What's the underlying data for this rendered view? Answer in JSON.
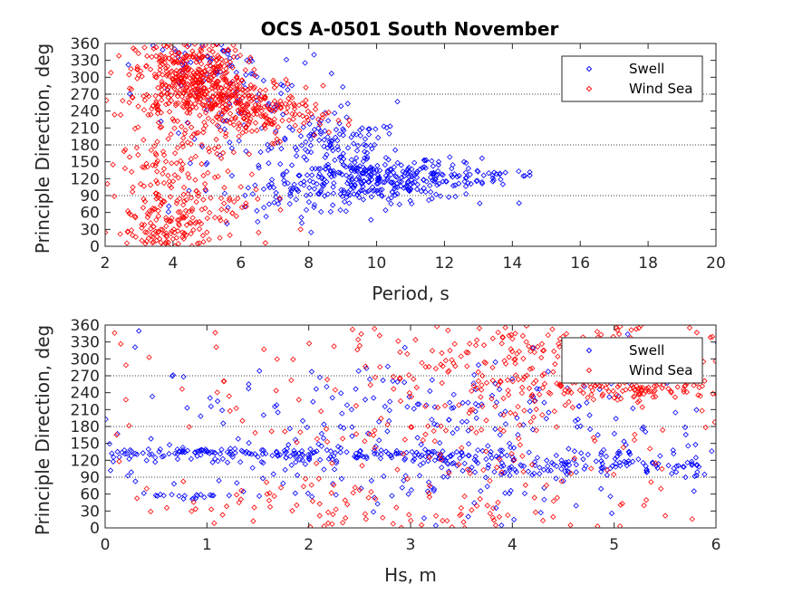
{
  "title": "OCS A-0501 South November",
  "series_colors": {
    "Swell": "#0000ff",
    "Wind Sea": "#ff0000"
  },
  "chart_data": [
    {
      "type": "scatter",
      "title": "OCS A-0501 South November",
      "xlabel": "Period, s",
      "ylabel": "Principle Direction, deg",
      "xlim": [
        2,
        20
      ],
      "ylim": [
        0,
        360
      ],
      "xticks": [
        "2",
        "4",
        "6",
        "8",
        "10",
        "12",
        "14",
        "16",
        "18",
        "20"
      ],
      "yticks": [
        "0",
        "30",
        "60",
        "90",
        "120",
        "150",
        "180",
        "210",
        "240",
        "270",
        "300",
        "330",
        "360"
      ],
      "reference_lines_y": [
        90,
        180,
        270
      ],
      "legend": [
        "Swell",
        "Wind Sea"
      ],
      "legend_position": "top-right",
      "marker": "diamond-open",
      "series": [
        {
          "name": "Swell",
          "color": "#0000ff",
          "clusters": [
            {
              "x_center": 9.5,
              "x_spread": 1.3,
              "y_center": 120,
              "y_spread": 22,
              "count": 260
            },
            {
              "x_center": 11.5,
              "x_spread": 1.2,
              "y_center": 115,
              "y_spread": 15,
              "count": 90
            },
            {
              "x_center": 13.5,
              "x_spread": 0.9,
              "y_center": 130,
              "y_spread": 8,
              "count": 20
            },
            {
              "x_center": 8.8,
              "x_spread": 1.0,
              "y_center": 185,
              "y_spread": 18,
              "count": 80
            },
            {
              "x_center": 7.0,
              "x_spread": 1.5,
              "y_center": 230,
              "y_spread": 40,
              "count": 60
            },
            {
              "x_center": 5.0,
              "x_spread": 1.0,
              "y_center": 320,
              "y_spread": 25,
              "count": 60
            },
            {
              "x_center": 7.0,
              "x_spread": 1.5,
              "y_center": 70,
              "y_spread": 25,
              "count": 40
            }
          ]
        },
        {
          "name": "Wind Sea",
          "color": "#ff0000",
          "clusters": [
            {
              "x_center": 4.5,
              "x_spread": 0.8,
              "y_center": 300,
              "y_spread": 35,
              "count": 350
            },
            {
              "x_center": 5.8,
              "x_spread": 1.0,
              "y_center": 255,
              "y_spread": 25,
              "count": 200
            },
            {
              "x_center": 7.0,
              "x_spread": 0.8,
              "y_center": 230,
              "y_spread": 20,
              "count": 80
            },
            {
              "x_center": 4.0,
              "x_spread": 0.9,
              "y_center": 150,
              "y_spread": 70,
              "count": 150
            },
            {
              "x_center": 4.5,
              "x_spread": 1.2,
              "y_center": 60,
              "y_spread": 30,
              "count": 100
            },
            {
              "x_center": 3.5,
              "x_spread": 0.6,
              "y_center": 20,
              "y_spread": 15,
              "count": 50
            }
          ]
        }
      ]
    },
    {
      "type": "scatter",
      "xlabel": "Hs, m",
      "ylabel": "Principle Direction, deg",
      "xlim": [
        0,
        6
      ],
      "ylim": [
        0,
        360
      ],
      "xticks": [
        "0",
        "1",
        "2",
        "3",
        "4",
        "5",
        "6"
      ],
      "yticks": [
        "0",
        "30",
        "60",
        "90",
        "120",
        "150",
        "180",
        "210",
        "240",
        "270",
        "300",
        "330",
        "360"
      ],
      "reference_lines_y": [
        90,
        180,
        270
      ],
      "legend": [
        "Swell",
        "Wind Sea"
      ],
      "legend_position": "top-right",
      "marker": "diamond-open",
      "series": [
        {
          "name": "Swell",
          "color": "#0000ff",
          "clusters": [
            {
              "x_center": 2.5,
              "x_spread": 1.5,
              "y_center": 130,
              "y_spread": 7,
              "count": 220
            },
            {
              "x_center": 4.8,
              "x_spread": 0.9,
              "y_center": 108,
              "y_spread": 10,
              "count": 120
            },
            {
              "x_center": 1.0,
              "x_spread": 0.3,
              "y_center": 135,
              "y_spread": 4,
              "count": 30
            },
            {
              "x_center": 3.5,
              "x_spread": 1.6,
              "y_center": 210,
              "y_spread": 45,
              "count": 200
            },
            {
              "x_center": 3.0,
              "x_spread": 1.5,
              "y_center": 80,
              "y_spread": 30,
              "count": 80
            },
            {
              "x_center": 0.9,
              "x_spread": 0.3,
              "y_center": 57,
              "y_spread": 3,
              "count": 20
            }
          ]
        },
        {
          "name": "Wind Sea",
          "color": "#ff0000",
          "clusters": [
            {
              "x_center": 4.5,
              "x_spread": 1.0,
              "y_center": 300,
              "y_spread": 35,
              "count": 200
            },
            {
              "x_center": 5.2,
              "x_spread": 0.6,
              "y_center": 245,
              "y_spread": 12,
              "count": 120
            },
            {
              "x_center": 3.5,
              "x_spread": 1.5,
              "y_center": 200,
              "y_spread": 100,
              "count": 220
            },
            {
              "x_center": 3.0,
              "x_spread": 1.2,
              "y_center": 30,
              "y_spread": 25,
              "count": 80
            }
          ]
        }
      ]
    }
  ]
}
